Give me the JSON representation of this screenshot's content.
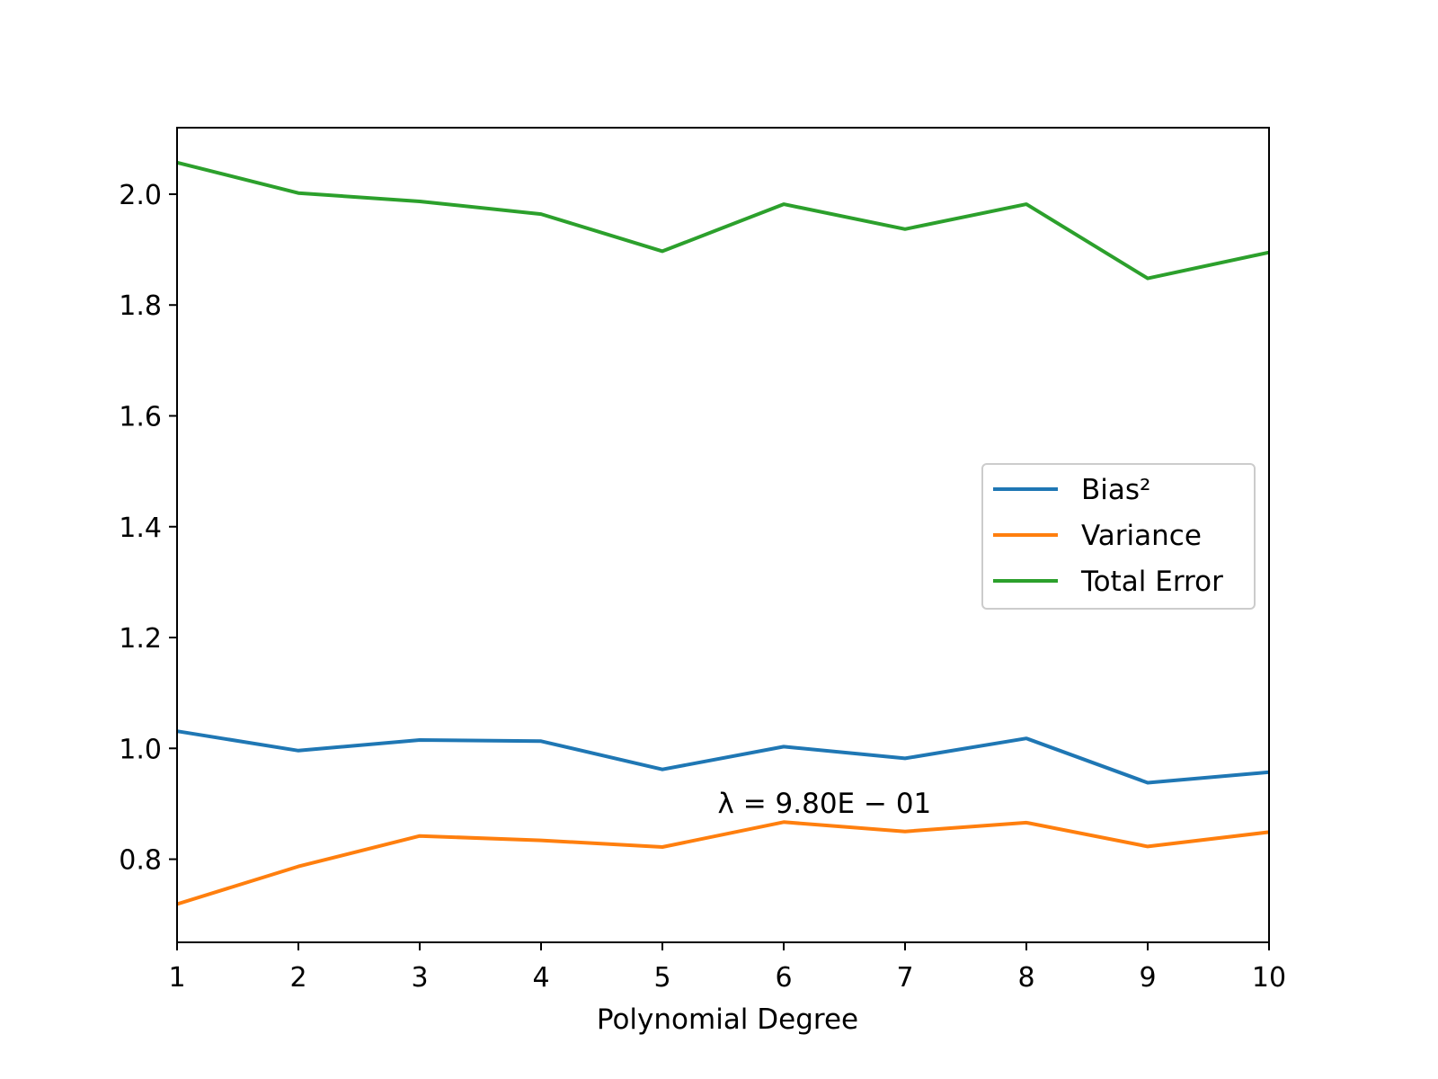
{
  "chart_data": {
    "type": "line",
    "x": [
      1,
      2,
      3,
      4,
      5,
      6,
      7,
      8,
      9,
      10
    ],
    "series": [
      {
        "name": "Bias²",
        "color": "#1f77b4",
        "values": [
          1.031,
          0.996,
          1.015,
          1.013,
          0.962,
          1.003,
          0.982,
          1.018,
          0.938,
          0.957
        ]
      },
      {
        "name": "Variance",
        "color": "#ff7f0e",
        "values": [
          0.719,
          0.787,
          0.842,
          0.834,
          0.822,
          0.867,
          0.85,
          0.866,
          0.823,
          0.849
        ]
      },
      {
        "name": "Total Error",
        "color": "#2ca02c",
        "values": [
          2.057,
          2.002,
          1.987,
          1.964,
          1.897,
          1.982,
          1.937,
          1.982,
          1.848,
          1.895
        ]
      }
    ],
    "xlabel": "Polynomial Degree",
    "ylabel": "",
    "xlim": [
      1,
      10
    ],
    "ylim": [
      0.65,
      2.12
    ],
    "xticks": [
      "1",
      "2",
      "3",
      "4",
      "5",
      "6",
      "7",
      "8",
      "9",
      "10"
    ],
    "yticks": [
      "0.8",
      "1.0",
      "1.2",
      "1.4",
      "1.6",
      "1.8",
      "2.0"
    ],
    "grid": false,
    "legend_position": "center-right",
    "annotation": {
      "text": "λ = 9.80E − 01",
      "x": 5.5,
      "y": 0.88
    }
  }
}
